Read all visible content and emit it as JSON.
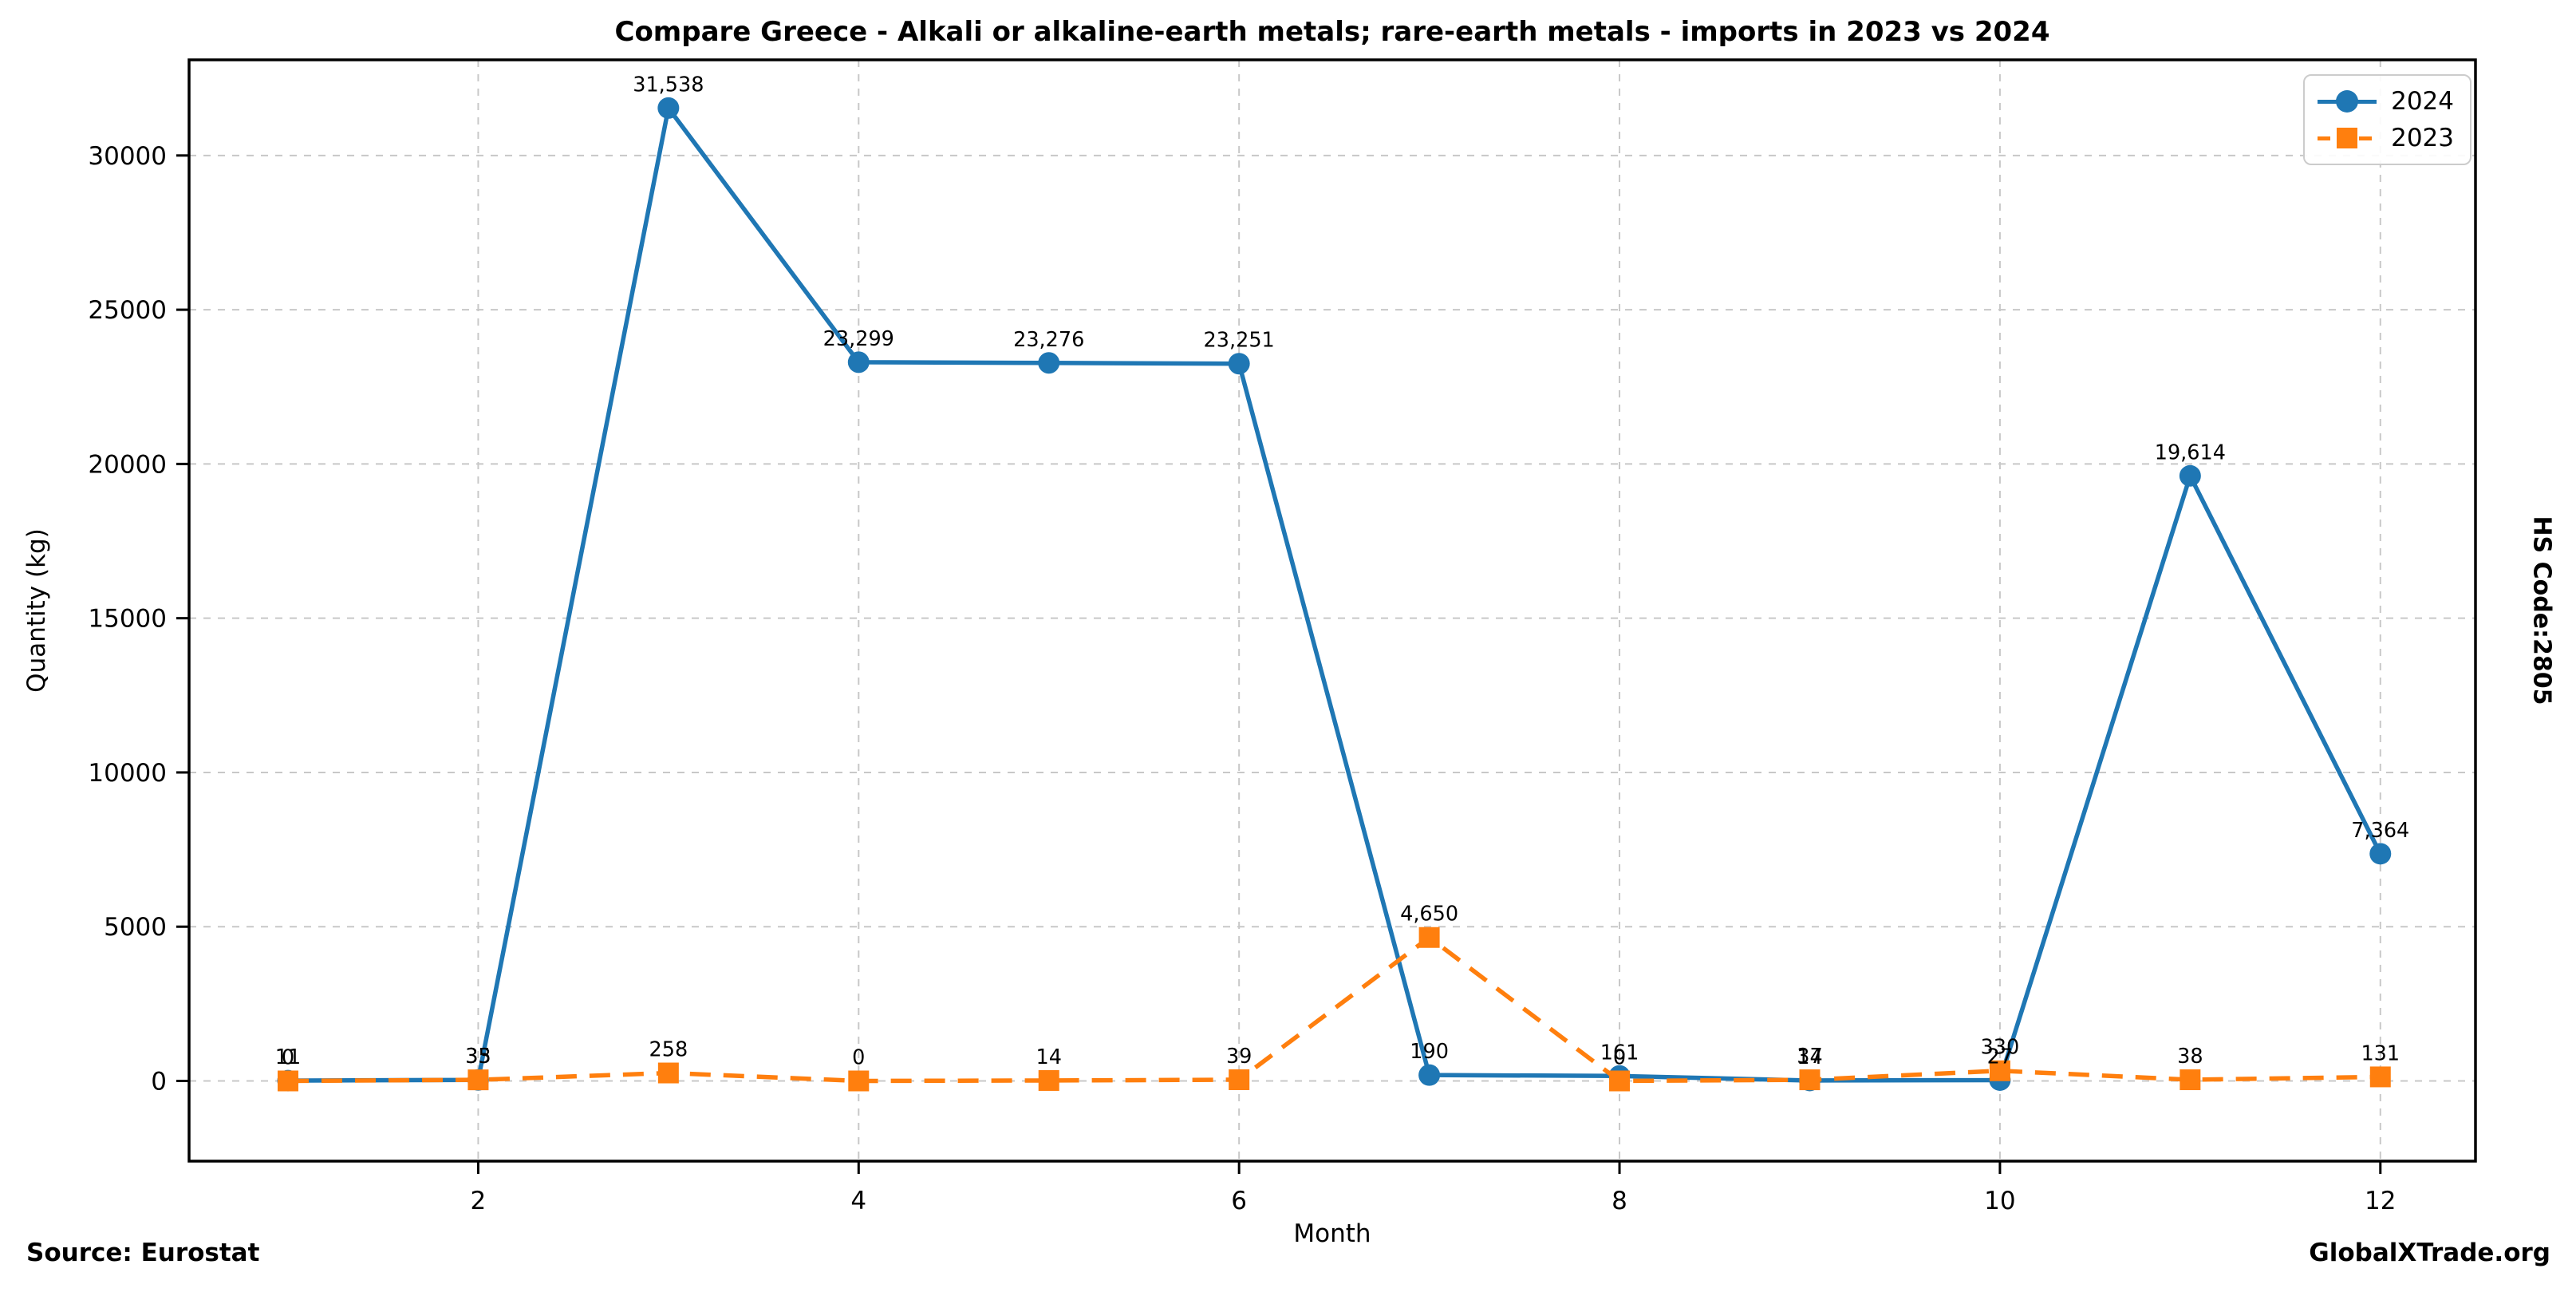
{
  "title": "Compare Greece - Alkali or alkaline-earth metals; rare-earth metals - imports in 2023 vs 2024",
  "side_label": "HS Code:2805",
  "footer": {
    "source": "Source: Eurostat",
    "brand": "GlobalXTrade.org"
  },
  "chart_data": {
    "type": "line",
    "title": "Compare Greece - Alkali or alkaline-earth metals; rare-earth metals - imports in 2023 vs 2024",
    "xlabel": "Month",
    "ylabel": "Quantity (kg)",
    "x": [
      1,
      2,
      3,
      4,
      5,
      6,
      7,
      8,
      9,
      10,
      11,
      12
    ],
    "xticks": [
      2,
      4,
      6,
      8,
      10,
      12
    ],
    "yticks": [
      0,
      5000,
      10000,
      15000,
      20000,
      25000,
      30000
    ],
    "xlim": [
      0.48,
      12.5
    ],
    "ylim": [
      -2600,
      33100
    ],
    "grid": true,
    "legend_position": "upper right",
    "series": [
      {
        "name": "2024",
        "color": "#1f77b4",
        "style": "solid",
        "marker": "circle",
        "values": [
          11,
          33,
          31538,
          23299,
          23276,
          23251,
          190,
          161,
          14,
          27,
          19614,
          7364
        ],
        "labels": [
          "11",
          "33",
          "31,538",
          "23,299",
          "23,276",
          "23,251",
          "190",
          "161",
          "14",
          "27",
          "19,614",
          "7,364"
        ]
      },
      {
        "name": "2023",
        "color": "#ff7f0e",
        "style": "dashed",
        "marker": "square",
        "values": [
          0,
          35,
          258,
          0,
          14,
          39,
          4650,
          0,
          37,
          330,
          38,
          131
        ],
        "labels": [
          "0",
          "35",
          "258",
          "0",
          "14",
          "39",
          "4,650",
          "0",
          "37",
          "330",
          "38",
          "131"
        ]
      }
    ],
    "grid_color": "#c8c8c8",
    "frame_color": "#000000"
  }
}
